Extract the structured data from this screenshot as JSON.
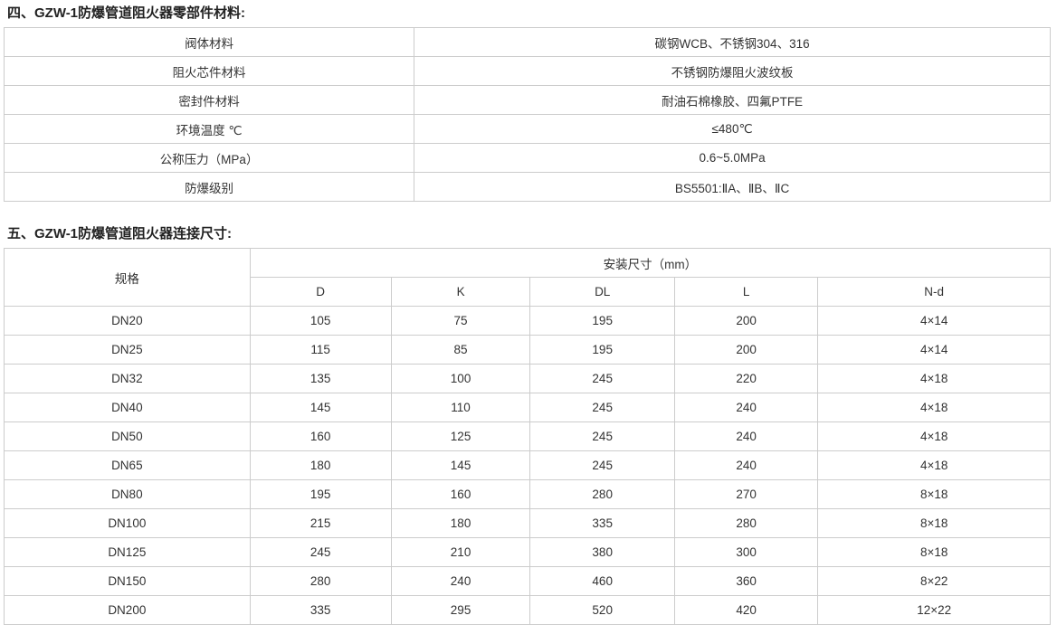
{
  "materials": {
    "title": "四、GZW-1防爆管道阻火器零部件材料:",
    "rows": [
      {
        "label": "阀体材料",
        "value": "碳钢WCB、不锈钢304、316"
      },
      {
        "label": "阻火芯件材料",
        "value": "不锈钢防爆阻火波纹板"
      },
      {
        "label": "密封件材料",
        "value": "耐油石棉橡胶、四氟PTFE"
      },
      {
        "label": "环境温度 ℃",
        "value": "≤480℃"
      },
      {
        "label": "公称压力（MPa）",
        "value": "0.6~5.0MPa"
      },
      {
        "label": "防爆级别",
        "value": "BS5501:ⅡA、ⅡB、ⅡC"
      }
    ]
  },
  "dimensions": {
    "title": "五、GZW-1防爆管道阻火器连接尺寸:",
    "spec_header": "规格",
    "group_header": "安装尺寸（mm）",
    "columns": [
      "D",
      "K",
      "DL",
      "L",
      "N-d"
    ],
    "rows": [
      {
        "spec": "DN20",
        "values": [
          "105",
          "75",
          "195",
          "200",
          "4×14"
        ]
      },
      {
        "spec": "DN25",
        "values": [
          "115",
          "85",
          "195",
          "200",
          "4×14"
        ]
      },
      {
        "spec": "DN32",
        "values": [
          "135",
          "100",
          "245",
          "220",
          "4×18"
        ]
      },
      {
        "spec": "DN40",
        "values": [
          "145",
          "110",
          "245",
          "240",
          "4×18"
        ]
      },
      {
        "spec": "DN50",
        "values": [
          "160",
          "125",
          "245",
          "240",
          "4×18"
        ]
      },
      {
        "spec": "DN65",
        "values": [
          "180",
          "145",
          "245",
          "240",
          "4×18"
        ]
      },
      {
        "spec": "DN80",
        "values": [
          "195",
          "160",
          "280",
          "270",
          "8×18"
        ]
      },
      {
        "spec": "DN100",
        "values": [
          "215",
          "180",
          "335",
          "280",
          "8×18"
        ]
      },
      {
        "spec": "DN125",
        "values": [
          "245",
          "210",
          "380",
          "300",
          "8×18"
        ]
      },
      {
        "spec": "DN150",
        "values": [
          "280",
          "240",
          "460",
          "360",
          "8×22"
        ]
      },
      {
        "spec": "DN200",
        "values": [
          "335",
          "295",
          "520",
          "420",
          "12×22"
        ]
      }
    ]
  }
}
